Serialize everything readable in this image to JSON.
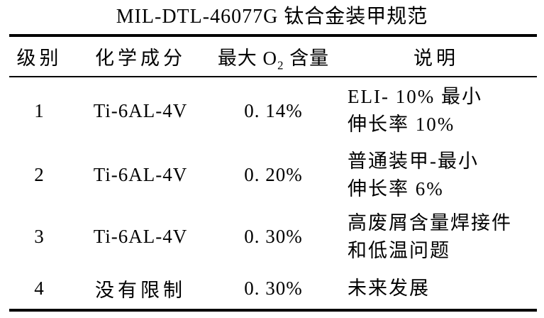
{
  "page": {
    "background": "#ffffff",
    "text_color": "#000000",
    "rule_color": "#000000"
  },
  "title": "MIL-DTL-46077G 钛合金装甲规范",
  "table": {
    "headers": {
      "grade": "级别",
      "composition": "化学成分",
      "o2_pre": "最大 O",
      "o2_sub": "2",
      "o2_post": " 含量",
      "description": "说明"
    },
    "rows": [
      {
        "grade": "1",
        "composition": "Ti-6AL-4V",
        "max_o2": "0. 14%",
        "desc": [
          "ELI- 10% 最小",
          "伸长率 10%"
        ]
      },
      {
        "grade": "2",
        "composition": "Ti-6AL-4V",
        "max_o2": "0. 20%",
        "desc": [
          "普通装甲-最小",
          "伸长率 6%"
        ]
      },
      {
        "grade": "3",
        "composition": "Ti-6AL-4V",
        "max_o2": "0. 30%",
        "desc": [
          "高废屑含量焊接件",
          "和低温问题"
        ]
      },
      {
        "grade": "4",
        "composition": "没有限制",
        "max_o2": "0. 30%",
        "desc": [
          "未来发展"
        ]
      }
    ]
  }
}
